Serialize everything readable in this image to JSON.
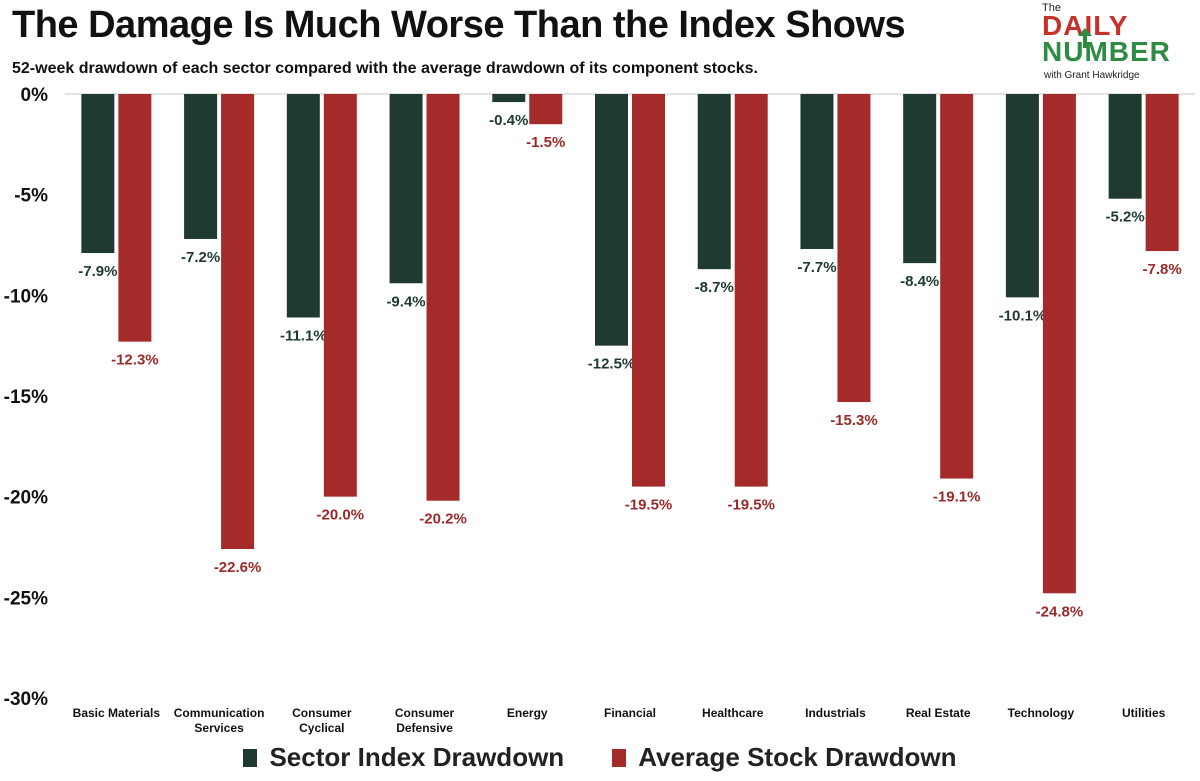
{
  "title": "The Damage Is Much Worse Than the Index Shows",
  "subtitle": "52-week drawdown of each sector compared with the average drawdown of its component stocks.",
  "logo": {
    "top": "The",
    "line1": "DAILY",
    "line2": "NUMBER",
    "byline": "with Grant Hawkridge"
  },
  "colors": {
    "sector": "#1f3a2f",
    "stock": "#a52a2a",
    "sector_label": "#1f3a2f",
    "stock_label": "#9b2a2a",
    "axis_text": "#111111"
  },
  "chart_data": {
    "type": "bar",
    "title": "The Damage Is Much Worse Than the Index Shows",
    "subtitle": "52-week drawdown of each sector compared with the average drawdown of its component stocks.",
    "categories": [
      [
        "Basic Materials"
      ],
      [
        "Communication",
        "Services"
      ],
      [
        "Consumer",
        "Cyclical"
      ],
      [
        "Consumer",
        "Defensive"
      ],
      [
        "Energy"
      ],
      [
        "Financial"
      ],
      [
        "Healthcare"
      ],
      [
        "Industrials"
      ],
      [
        "Real Estate"
      ],
      [
        "Technology"
      ],
      [
        "Utilities"
      ]
    ],
    "series": [
      {
        "name": "Sector Index Drawdown",
        "values": [
          -7.9,
          -7.2,
          -11.1,
          -9.4,
          -0.4,
          -12.5,
          -8.7,
          -7.7,
          -8.4,
          -10.1,
          -5.2
        ],
        "labels": [
          "-7.9%",
          "-7.2%",
          "-11.1%",
          "-9.4%",
          "-0.4%",
          "-12.5%",
          "-8.7%",
          "-7.7%",
          "-8.4%",
          "-10.1%",
          "-5.2%"
        ]
      },
      {
        "name": "Average Stock Drawdown",
        "values": [
          -12.3,
          -22.6,
          -20.0,
          -20.2,
          -1.5,
          -19.5,
          -19.5,
          -15.3,
          -19.1,
          -24.8,
          -7.8
        ],
        "labels": [
          "-12.3%",
          "-22.6%",
          "-20.0%",
          "-20.2%",
          "-1.5%",
          "-19.5%",
          "-19.5%",
          "-15.3%",
          "-19.1%",
          "-24.8%",
          "-7.8%"
        ]
      }
    ],
    "y_ticks": [
      0,
      -5,
      -10,
      -15,
      -20,
      -25,
      -30
    ],
    "y_tick_labels": [
      "0%",
      "-5%",
      "-10%",
      "-15%",
      "-20%",
      "-25%",
      "-30%"
    ],
    "ylim": [
      -30,
      0
    ],
    "xlabel": "",
    "ylabel": "",
    "grid": false,
    "legend_position": "bottom"
  }
}
